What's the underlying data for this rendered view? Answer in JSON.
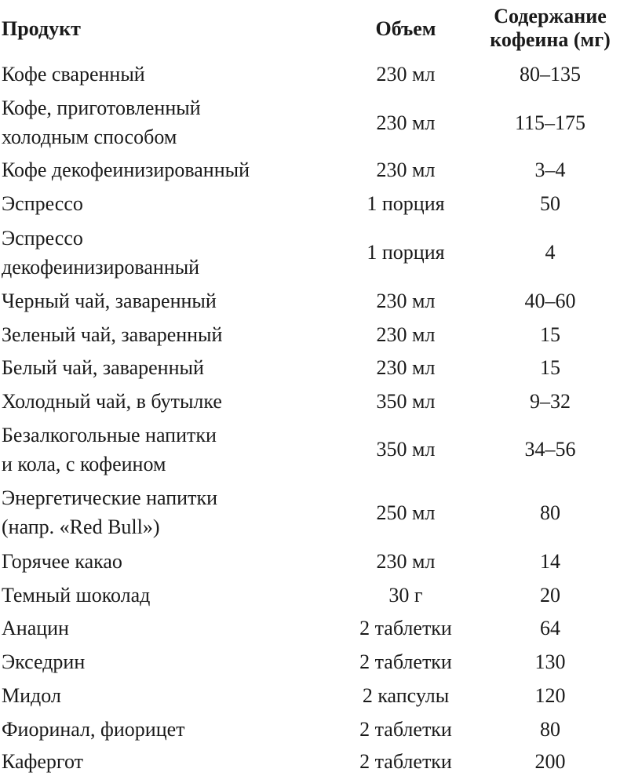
{
  "headers": {
    "product": "Продукт",
    "volume": "Объем",
    "caffeine_line1": "Содержание",
    "caffeine_line2": "кофеина (мг)"
  },
  "rows": [
    {
      "product": [
        "Кофе сваренный"
      ],
      "volume": "230 мл",
      "caffeine": "80–135"
    },
    {
      "product": [
        "Кофе, приготовленный",
        "холодным способом"
      ],
      "volume": "230 мл",
      "caffeine": "115–175"
    },
    {
      "product": [
        "Кофе декофеинизированный"
      ],
      "volume": "230 мл",
      "caffeine": "3–4"
    },
    {
      "product": [
        "Эспрессо"
      ],
      "volume": "1 порция",
      "caffeine": "50"
    },
    {
      "product": [
        "Эспрессо",
        "декофеинизированный"
      ],
      "volume": "1 порция",
      "caffeine": "4"
    },
    {
      "product": [
        "Черный чай, заваренный"
      ],
      "volume": "230 мл",
      "caffeine": "40–60"
    },
    {
      "product": [
        "Зеленый чай, заваренный"
      ],
      "volume": "230 мл",
      "caffeine": "15"
    },
    {
      "product": [
        "Белый чай, заваренный"
      ],
      "volume": "230 мл",
      "caffeine": "15"
    },
    {
      "product": [
        "Холодный чай, в бутылке"
      ],
      "volume": "350 мл",
      "caffeine": "9–32"
    },
    {
      "product": [
        "Безалкогольные напитки",
        "и кола, с кофеином"
      ],
      "volume": "350 мл",
      "caffeine": "34–56"
    },
    {
      "product": [
        "Энергетические напитки",
        "(напр. «Red Bull»)"
      ],
      "volume": "250 мл",
      "caffeine": "80"
    },
    {
      "product": [
        "Горячее какао"
      ],
      "volume": "230 мл",
      "caffeine": "14"
    },
    {
      "product": [
        "Темный шоколад"
      ],
      "volume": "30 г",
      "caffeine": "20"
    },
    {
      "product": [
        "Анацин"
      ],
      "volume": "2 таблетки",
      "caffeine": "64"
    },
    {
      "product": [
        "Экседрин"
      ],
      "volume": "2 таблетки",
      "caffeine": "130"
    },
    {
      "product": [
        "Мидол"
      ],
      "volume": "2 капсулы",
      "caffeine": "120"
    },
    {
      "product": [
        "Фиоринал, фиорицет"
      ],
      "volume": "2 таблетки",
      "caffeine": "80"
    },
    {
      "product": [
        "Кафергот"
      ],
      "volume": "2 таблетки",
      "caffeine": "200"
    }
  ]
}
